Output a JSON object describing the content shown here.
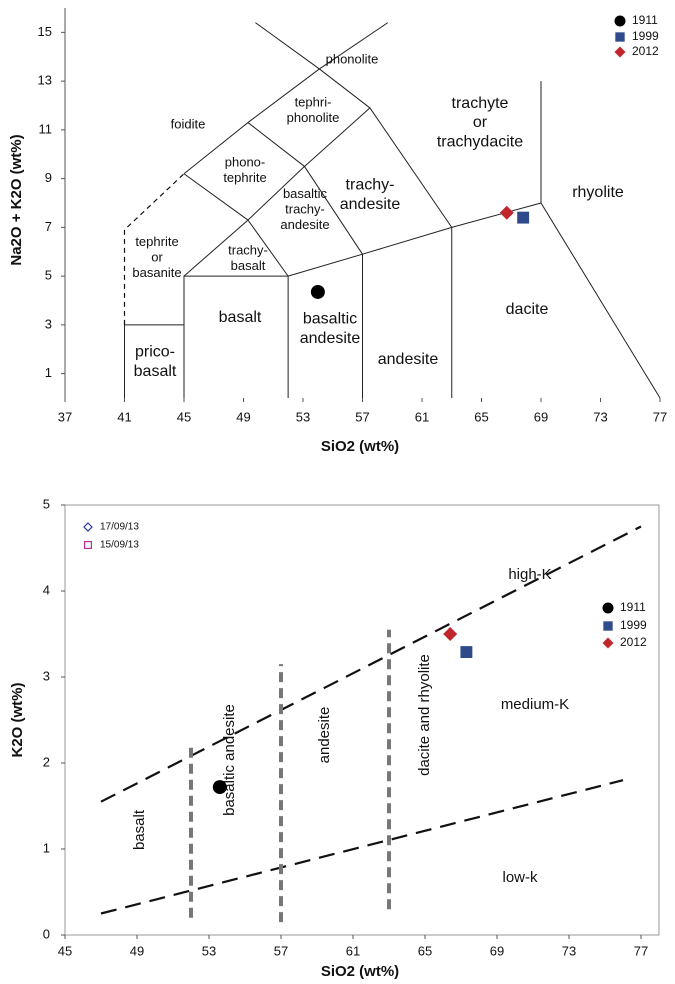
{
  "chart_data": [
    {
      "type": "scatter",
      "xlabel": "SiO2 (wt%)",
      "ylabel": "Na2O + K2O (wt%)",
      "xlim": [
        37,
        77
      ],
      "ylim": [
        0,
        16
      ],
      "xticks": [
        37,
        41,
        45,
        49,
        53,
        57,
        61,
        65,
        69,
        73,
        77
      ],
      "yticks": [
        1,
        3,
        5,
        7,
        9,
        11,
        13,
        15
      ],
      "frame": false,
      "legend": "upper right",
      "series": [
        {
          "name": "1911",
          "color": "#000000",
          "marker": "circle",
          "filled": true,
          "x": [
            54.0
          ],
          "y": [
            4.35
          ]
        },
        {
          "name": "1999",
          "color": "#2e4a8b",
          "marker": "square",
          "filled": true,
          "x": [
            67.8
          ],
          "y": [
            7.4
          ]
        },
        {
          "name": "2012",
          "color": "#c0272d",
          "marker": "diamond",
          "filled": true,
          "x": [
            66.7
          ],
          "y": [
            7.6
          ]
        }
      ],
      "boundaries": [
        {
          "style": "solid",
          "x": [
            41,
            41,
            45
          ],
          "y": [
            0,
            3,
            3
          ]
        },
        {
          "style": "solid",
          "x": [
            45,
            45,
            52,
            52
          ],
          "y": [
            0,
            5,
            5,
            0
          ]
        },
        {
          "style": "solid",
          "x": [
            52,
            57,
            63,
            69,
            77
          ],
          "y": [
            5,
            5.9,
            7,
            8,
            0
          ]
        },
        {
          "style": "solid",
          "x": [
            57,
            57
          ],
          "y": [
            0,
            5.9
          ]
        },
        {
          "style": "solid",
          "x": [
            63,
            63
          ],
          "y": [
            0,
            7
          ]
        },
        {
          "style": "solid",
          "x": [
            69,
            69
          ],
          "y": [
            8,
            13
          ]
        },
        {
          "style": "solid",
          "x": [
            45,
            49.3,
            52
          ],
          "y": [
            5,
            7.3,
            5
          ]
        },
        {
          "style": "solid",
          "x": [
            45,
            49.3,
            53.1,
            57
          ],
          "y": [
            9.2,
            7.3,
            9.5,
            5.9
          ]
        },
        {
          "style": "solid",
          "x": [
            45,
            49.3,
            54.1,
            58.7
          ],
          "y": [
            9.2,
            11.3,
            13.5,
            15.4
          ]
        },
        {
          "style": "solid",
          "x": [
            49.8,
            54.1,
            57.5
          ],
          "y": [
            15.4,
            13.5,
            11.9
          ]
        },
        {
          "style": "solid",
          "x": [
            49.3,
            53.1,
            57.5,
            63
          ],
          "y": [
            11.3,
            9.5,
            11.9,
            7
          ]
        },
        {
          "style": "dashed",
          "x": [
            41,
            41,
            45
          ],
          "y": [
            3,
            6.9,
            9.2
          ]
        }
      ],
      "regions": [
        [
          "phonolite"
        ],
        [
          "tephri-",
          "phonolite"
        ],
        [
          "foidite"
        ],
        [
          "trachyte",
          "or",
          "trachydacite"
        ],
        [
          "phono-",
          "tephrite"
        ],
        [
          "trachy-",
          "andesite"
        ],
        [
          "rhyolite"
        ],
        [
          "basaltic",
          "trachy-",
          "andesite"
        ],
        [
          "tephrite",
          "or",
          "basanite"
        ],
        [
          "trachy-",
          "basalt"
        ],
        [
          "basaltic",
          "andesite"
        ],
        [
          "dacite"
        ],
        [
          "basalt"
        ],
        [
          "prico-",
          "basalt"
        ],
        [
          "andesite"
        ]
      ]
    },
    {
      "type": "scatter",
      "xlabel": "SiO2 (wt%)",
      "ylabel": "K2O (wt%)",
      "xlim": [
        45,
        78
      ],
      "ylim": [
        0,
        5
      ],
      "xticks": [
        45,
        49,
        53,
        57,
        61,
        65,
        69,
        73,
        77
      ],
      "yticks": [
        0,
        1,
        2,
        3,
        4,
        5
      ],
      "frame": true,
      "legend": "upper right",
      "series": [
        {
          "name": "17/09/13",
          "color": "#2e3a9b",
          "marker": "diamond",
          "filled": false,
          "x": [],
          "y": []
        },
        {
          "name": "15/09/13",
          "color": "#b0309b",
          "marker": "square",
          "filled": false,
          "x": [],
          "y": []
        },
        {
          "name": "1911",
          "color": "#000000",
          "marker": "circle",
          "filled": true,
          "x": [
            53.6
          ],
          "y": [
            1.72
          ]
        },
        {
          "name": "1999",
          "color": "#2e4a8b",
          "marker": "square",
          "filled": true,
          "x": [
            67.3
          ],
          "y": [
            3.29
          ]
        },
        {
          "name": "2012",
          "color": "#c0272d",
          "marker": "diamond",
          "filled": true,
          "x": [
            66.4
          ],
          "y": [
            3.5
          ]
        }
      ],
      "boundaries": [
        {
          "style": "dashed",
          "x": [
            47,
            77
          ],
          "y": [
            1.55,
            4.75
          ]
        },
        {
          "style": "dashed",
          "x": [
            47,
            76
          ],
          "y": [
            0.25,
            1.8
          ]
        },
        {
          "style": "thick-dashed",
          "x": [
            52,
            52
          ],
          "y": [
            0.2,
            2.2
          ]
        },
        {
          "style": "thick-dashed",
          "x": [
            57,
            57
          ],
          "y": [
            0.15,
            3.15
          ]
        },
        {
          "style": "thick-dashed",
          "x": [
            63,
            63
          ],
          "y": [
            0.3,
            3.55
          ]
        }
      ],
      "regions": [
        [
          "high-K"
        ],
        [
          "medium-K"
        ],
        [
          "low-k"
        ],
        [
          "basalt"
        ],
        [
          "basaltic andesite"
        ],
        [
          "andesite"
        ],
        [
          "dacite and rhyolite"
        ]
      ]
    }
  ]
}
